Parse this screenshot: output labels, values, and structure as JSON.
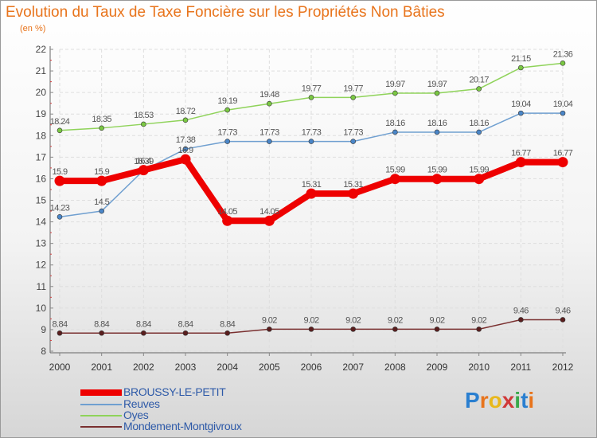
{
  "title": "Evolution du Taux de Taxe Foncière sur les Propriétés Non Bâties",
  "unit": "(en %)",
  "logo": {
    "text": "Proxiti",
    "letters": [
      "P",
      "r",
      "o",
      "x",
      "i",
      "t",
      "i"
    ],
    "colors": [
      "#2a7fd0",
      "#e8741c",
      "#e8b81c",
      "#d03a3a",
      "#3aa84a",
      "#2a7fd0",
      "#e8741c"
    ]
  },
  "chart_data": {
    "type": "line",
    "title": "Evolution du Taux de Taxe Foncière sur les Propriétés Non Bâties",
    "ylabel": "(en %)",
    "ylim": [
      8,
      22
    ],
    "yticks": [
      8,
      9,
      10,
      11,
      12,
      13,
      14,
      15,
      16,
      17,
      18,
      19,
      20,
      21,
      22
    ],
    "categories": [
      "2000",
      "2001",
      "2002",
      "2003",
      "2004",
      "2005",
      "2006",
      "2007",
      "2008",
      "2009",
      "2010",
      "2011",
      "2012"
    ],
    "legend_position": "bottom-left",
    "series": [
      {
        "name": "Oyes",
        "color": "#8fd35a",
        "marker": "#7ac843",
        "thick": false,
        "values": [
          18.24,
          18.35,
          18.53,
          18.72,
          19.19,
          19.48,
          19.77,
          19.77,
          19.97,
          19.97,
          20.17,
          21.15,
          21.36
        ],
        "labels": [
          "18.24",
          "18.35",
          "18.53",
          "18.72",
          "19.19",
          "19.48",
          "19.77",
          "19.77",
          "19.97",
          "19.97",
          "20.17",
          "21.15",
          "21.36"
        ]
      },
      {
        "name": "Reuves",
        "color": "#6f9fd0",
        "marker": "#4a86c8",
        "thick": false,
        "values": [
          14.23,
          14.5,
          16.39,
          17.38,
          17.73,
          17.73,
          17.73,
          17.73,
          18.16,
          18.16,
          18.16,
          19.04,
          19.04
        ],
        "labels": [
          "14.23",
          "14.5",
          "16.39",
          "17.38",
          "17.73",
          "17.73",
          "17.73",
          "17.73",
          "18.16",
          "18.16",
          "18.16",
          "19.04",
          "19.04"
        ]
      },
      {
        "name": "Mondement-Montgivroux",
        "color": "#7a3030",
        "marker": "#5a1e1e",
        "thick": false,
        "values": [
          8.84,
          8.84,
          8.84,
          8.84,
          8.84,
          9.02,
          9.02,
          9.02,
          9.02,
          9.02,
          9.02,
          9.46,
          9.46
        ],
        "labels": [
          "8.84",
          "8.84",
          "8.84",
          "8.84",
          "8.84",
          "9.02",
          "9.02",
          "9.02",
          "9.02",
          "9.02",
          "9.02",
          "9.46",
          "9.46"
        ]
      },
      {
        "name": "BROUSSY-LE-PETIT",
        "color": "#ee0000",
        "marker": "#ee0000",
        "thick": true,
        "values": [
          15.9,
          15.9,
          16.4,
          16.9,
          14.05,
          14.05,
          15.31,
          15.31,
          15.99,
          15.99,
          15.99,
          16.77,
          16.77
        ],
        "labels": [
          "15.9",
          "15.9",
          "16.4",
          "16.9",
          "14.05",
          "14.05",
          "15.31",
          "15.31",
          "15.99",
          "15.99",
          "15.99",
          "16.77",
          "16.77"
        ]
      }
    ]
  },
  "legend": [
    {
      "name": "BROUSSY-LE-PETIT",
      "color": "#ee0000",
      "thick": true
    },
    {
      "name": "Reuves",
      "color": "#6f9fd0",
      "thick": false
    },
    {
      "name": "Oyes",
      "color": "#8fd35a",
      "thick": false
    },
    {
      "name": "Mondement-Montgivroux",
      "color": "#7a3030",
      "thick": false
    }
  ]
}
